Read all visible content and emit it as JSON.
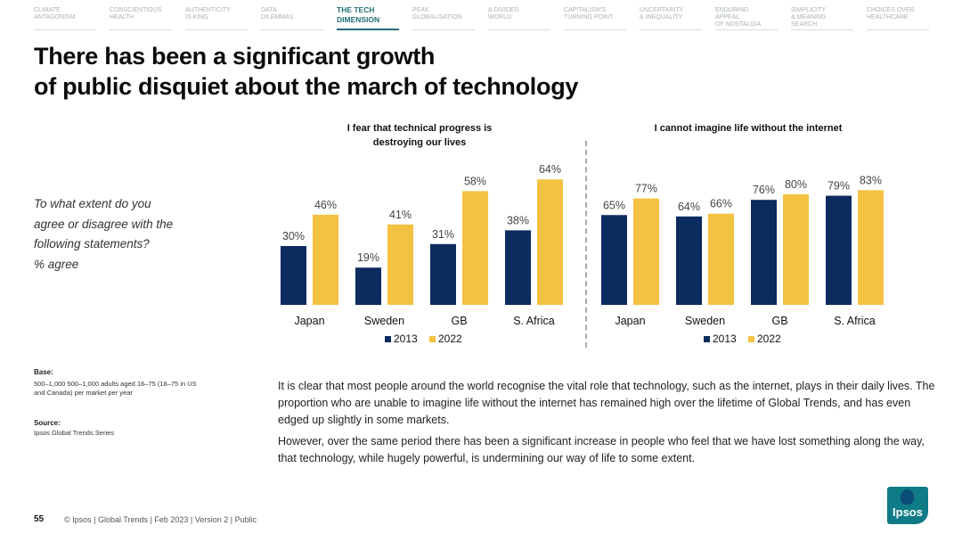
{
  "nav": [
    {
      "line1": "CLIMATE",
      "line2": "ANTAGONISM"
    },
    {
      "line1": "CONSCIENTIOUS",
      "line2": "HEALTH"
    },
    {
      "line1": "AUTHENTICITY",
      "line2": "IS KING"
    },
    {
      "line1": "DATA",
      "line2": "DILEMMAS"
    },
    {
      "line1": "THE TECH",
      "line2": "DIMENSION",
      "active": true
    },
    {
      "line1": "PEAK",
      "line2": "GLOBALISATION"
    },
    {
      "line1": "A DIVIDED",
      "line2": "WORLD"
    },
    {
      "line1": "CAPITALISM'S",
      "line2": "TURNING POINT"
    },
    {
      "line1": "UNCERTAINTY",
      "line2": "& INEQUALITY"
    },
    {
      "line1": "ENDURING APPEAL",
      "line2": "OF NOSTALGIA"
    },
    {
      "line1": "SIMPLICITY",
      "line2": "& MEANING SEARCH"
    },
    {
      "line1": "CHOICES OVER",
      "line2": "HEALTHCARE"
    }
  ],
  "title": {
    "line1": "There has been a significant growth",
    "line2": "of public disquiet about the march of technology"
  },
  "question": {
    "line1": "To what extent do you",
    "line2": "agree or disagree with the",
    "line3": "following statements?",
    "line4": "% agree"
  },
  "colors": {
    "series_2013": "#0c2b5e",
    "series_2022": "#f4c242",
    "accent": "#1f6e76"
  },
  "chart_data": [
    {
      "type": "bar",
      "title_line1": "I fear that technical progress is",
      "title_line2": "destroying our lives",
      "categories": [
        "Japan",
        "Sweden",
        "GB",
        "S. Africa"
      ],
      "series": [
        {
          "name": "2013",
          "values": [
            30,
            19,
            31,
            38
          ]
        },
        {
          "name": "2022",
          "values": [
            46,
            41,
            58,
            64
          ]
        }
      ],
      "value_suffix": "%",
      "ylim": [
        0,
        70
      ],
      "legend_position": "bottom",
      "grid": false
    },
    {
      "type": "bar",
      "title_line1": "I cannot imagine life without the internet",
      "categories": [
        "Japan",
        "Sweden",
        "GB",
        "S. Africa"
      ],
      "series": [
        {
          "name": "2013",
          "values": [
            65,
            64,
            76,
            79
          ]
        },
        {
          "name": "2022",
          "values": [
            77,
            66,
            80,
            83
          ]
        }
      ],
      "value_suffix": "%",
      "ylim": [
        0,
        90
      ],
      "legend_position": "bottom",
      "grid": false
    }
  ],
  "base": {
    "label": "Base:",
    "text": "500–1,000 500–1,000 adults aged 16–75 (18–75 in US and Canada) per market per year"
  },
  "source": {
    "label": "Source:",
    "text": "Ipsos Global Trends Series"
  },
  "body": {
    "p1": "It is clear that most people around the world recognise the vital role that technology, such as the internet, plays in their daily lives. The proportion who are unable to imagine life without the internet has remained high over the lifetime of Global Trends, and has even edged up slightly in some markets.",
    "p2": "However, over the same period there has been a significant increase in people who feel that we have lost something along the way, that technology, while hugely powerful, is undermining our way of life to some extent."
  },
  "footer": {
    "page": "55",
    "text": "© Ipsos | Global Trends | Feb 2023 | Version 2 | Public"
  },
  "logo": {
    "text": "Ipsos"
  }
}
